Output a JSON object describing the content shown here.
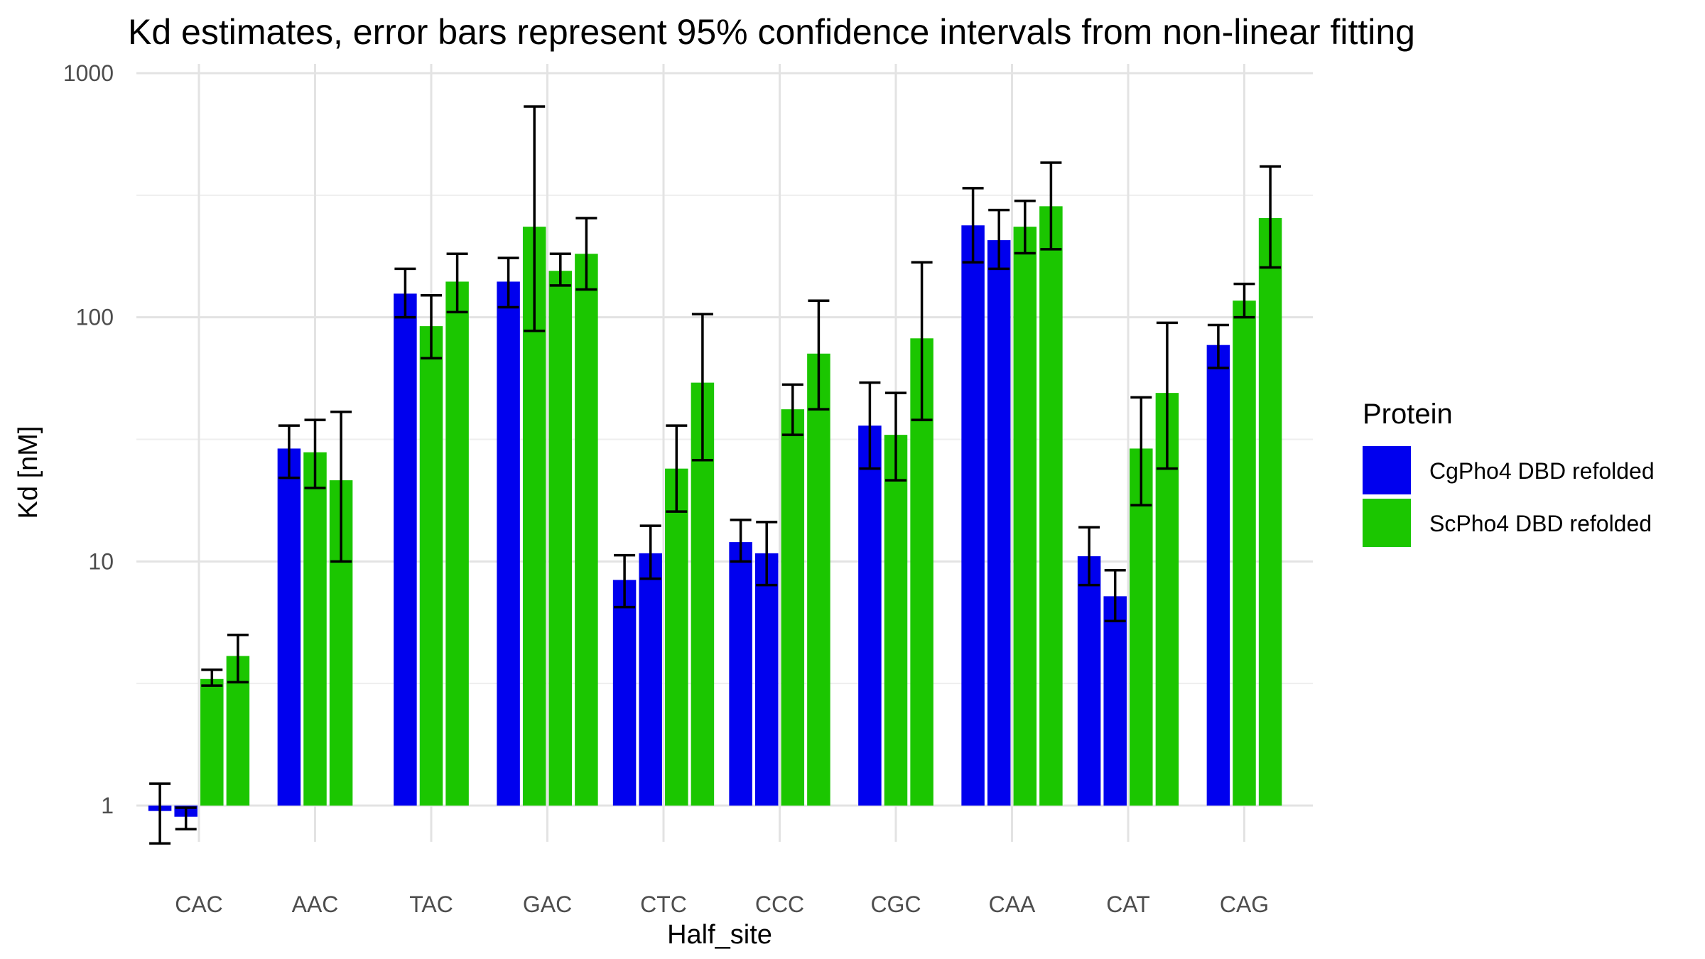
{
  "chart_data": {
    "type": "bar",
    "title": "Kd estimates, error bars represent 95% confidence intervals from non-linear fitting",
    "xlabel": "Half_site",
    "ylabel": "Kd [nM]",
    "y_scale": "log10",
    "ylim": [
      0.55,
      1000
    ],
    "y_ticks": [
      1,
      10,
      100,
      1000
    ],
    "y_tick_labels": [
      "1",
      "10",
      "100",
      "1000"
    ],
    "grid": true,
    "categories": [
      "CAC",
      "AAC",
      "TAC",
      "GAC",
      "CTC",
      "CCC",
      "CGC",
      "CAA",
      "CAT",
      "CAG"
    ],
    "legend": {
      "title": "Protein",
      "position": "right",
      "entries": [
        {
          "name": "CgPho4 DBD refolded",
          "color": "#0000EE"
        },
        {
          "name": "ScPho4 DBD refolded",
          "color": "#1BC600"
        }
      ]
    },
    "bar_groups": [
      {
        "category": "CAC",
        "bars": [
          {
            "protein": "CgPho4 DBD refolded",
            "value": 0.95,
            "ci": [
              0.7,
              1.23
            ]
          },
          {
            "protein": "CgPho4 DBD refolded",
            "value": 0.9,
            "ci": [
              0.8,
              0.98
            ]
          },
          {
            "protein": "ScPho4 DBD refolded",
            "value": 3.3,
            "ci": [
              3.1,
              3.6
            ]
          },
          {
            "protein": "ScPho4 DBD refolded",
            "value": 4.1,
            "ci": [
              3.2,
              5.0
            ]
          }
        ]
      },
      {
        "category": "AAC",
        "bars": [
          {
            "protein": "CgPho4 DBD refolded",
            "value": 29,
            "ci": [
              22,
              36
            ]
          },
          {
            "protein": "ScPho4 DBD refolded",
            "value": 28,
            "ci": [
              20,
              38
            ]
          },
          {
            "protein": "ScPho4 DBD refolded",
            "value": 21.5,
            "ci": [
              10,
              41
            ]
          }
        ]
      },
      {
        "category": "TAC",
        "bars": [
          {
            "protein": "CgPho4 DBD refolded",
            "value": 125,
            "ci": [
              100,
              158
            ]
          },
          {
            "protein": "ScPho4 DBD refolded",
            "value": 92,
            "ci": [
              68,
              123
            ]
          },
          {
            "protein": "ScPho4 DBD refolded",
            "value": 140,
            "ci": [
              105,
              182
            ]
          }
        ]
      },
      {
        "category": "GAC",
        "bars": [
          {
            "protein": "CgPho4 DBD refolded",
            "value": 140,
            "ci": [
              110,
              175
            ]
          },
          {
            "protein": "ScPho4 DBD refolded",
            "value": 235,
            "ci": [
              88,
              730
            ]
          },
          {
            "protein": "ScPho4 DBD refolded",
            "value": 155,
            "ci": [
              135,
              182
            ]
          },
          {
            "protein": "ScPho4 DBD refolded",
            "value": 182,
            "ci": [
              130,
              255
            ]
          }
        ]
      },
      {
        "category": "CTC",
        "bars": [
          {
            "protein": "CgPho4 DBD refolded",
            "value": 8.4,
            "ci": [
              6.5,
              10.6
            ]
          },
          {
            "protein": "CgPho4 DBD refolded",
            "value": 10.8,
            "ci": [
              8.5,
              14
            ]
          },
          {
            "protein": "ScPho4 DBD refolded",
            "value": 24,
            "ci": [
              16,
              36
            ]
          },
          {
            "protein": "ScPho4 DBD refolded",
            "value": 54,
            "ci": [
              26,
              103
            ]
          }
        ]
      },
      {
        "category": "CCC",
        "bars": [
          {
            "protein": "CgPho4 DBD refolded",
            "value": 12,
            "ci": [
              10,
              14.8
            ]
          },
          {
            "protein": "CgPho4 DBD refolded",
            "value": 10.8,
            "ci": [
              8,
              14.5
            ]
          },
          {
            "protein": "ScPho4 DBD refolded",
            "value": 42,
            "ci": [
              33,
              53
            ]
          },
          {
            "protein": "ScPho4 DBD refolded",
            "value": 71,
            "ci": [
              42,
              117
            ]
          }
        ]
      },
      {
        "category": "CGC",
        "bars": [
          {
            "protein": "CgPho4 DBD refolded",
            "value": 36,
            "ci": [
              24,
              54
            ]
          },
          {
            "protein": "ScPho4 DBD refolded",
            "value": 33,
            "ci": [
              21.5,
              49
            ]
          },
          {
            "protein": "ScPho4 DBD refolded",
            "value": 82,
            "ci": [
              38,
              168
            ]
          }
        ]
      },
      {
        "category": "CAA",
        "bars": [
          {
            "protein": "CgPho4 DBD refolded",
            "value": 238,
            "ci": [
              168,
              338
            ]
          },
          {
            "protein": "CgPho4 DBD refolded",
            "value": 207,
            "ci": [
              158,
              275
            ]
          },
          {
            "protein": "ScPho4 DBD refolded",
            "value": 235,
            "ci": [
              183,
              300
            ]
          },
          {
            "protein": "ScPho4 DBD refolded",
            "value": 285,
            "ci": [
              190,
              430
            ]
          }
        ]
      },
      {
        "category": "CAT",
        "bars": [
          {
            "protein": "CgPho4 DBD refolded",
            "value": 10.5,
            "ci": [
              8,
              13.8
            ]
          },
          {
            "protein": "CgPho4 DBD refolded",
            "value": 7.2,
            "ci": [
              5.7,
              9.2
            ]
          },
          {
            "protein": "ScPho4 DBD refolded",
            "value": 29,
            "ci": [
              17,
              47
            ]
          },
          {
            "protein": "ScPho4 DBD refolded",
            "value": 49,
            "ci": [
              24,
              95
            ]
          }
        ]
      },
      {
        "category": "CAG",
        "bars": [
          {
            "protein": "CgPho4 DBD refolded",
            "value": 77,
            "ci": [
              62,
              93
            ]
          },
          {
            "protein": "ScPho4 DBD refolded",
            "value": 117,
            "ci": [
              100,
              137
            ]
          },
          {
            "protein": "ScPho4 DBD refolded",
            "value": 255,
            "ci": [
              160,
              415
            ]
          }
        ]
      }
    ]
  }
}
